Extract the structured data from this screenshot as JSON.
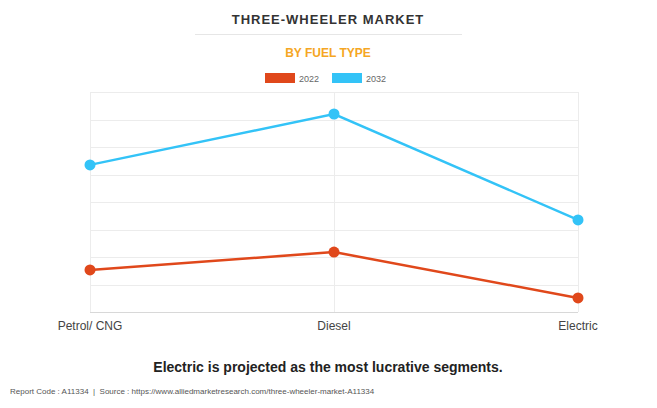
{
  "chart_data": {
    "type": "line",
    "title": "THREE-WHEELER MARKET",
    "subtitle": "BY FUEL TYPE",
    "categories": [
      "Petrol/ CNG",
      "Diesel",
      "Electric"
    ],
    "series": [
      {
        "name": "2022",
        "color": "#e0481b",
        "values": [
          1.53,
          2.18,
          0.51
        ]
      },
      {
        "name": "2032",
        "color": "#33c3f7",
        "values": [
          5.35,
          7.2,
          3.35
        ]
      }
    ],
    "ylim": [
      0,
      8
    ],
    "yticks": [
      0,
      1,
      2,
      3,
      4,
      5,
      6,
      7,
      8
    ],
    "grid": true,
    "legend": "top",
    "tick_labels": "x",
    "marker": "circle",
    "annotation": "Electric is projected as the most lucrative segments.",
    "footer": "Report Code : A11334  |  Source : https://www.alliedmarketresearch.com/three-wheeler-market-A11334"
  }
}
